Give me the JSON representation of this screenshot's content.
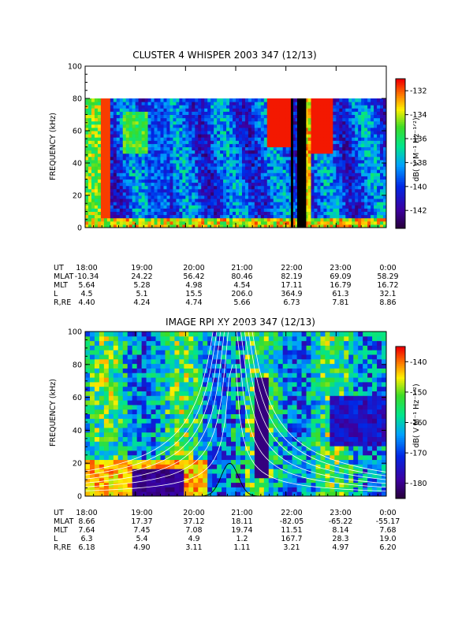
{
  "chart_data": [
    {
      "type": "heatmap",
      "title": "CLUSTER 4 WHISPER 2003 347 (12/13)",
      "ylabel": "FREQUENCY (kHz)",
      "ylim": [
        0,
        100
      ],
      "yticks": [
        "0",
        "20",
        "40",
        "60",
        "80",
        "100"
      ],
      "xticks": [
        "18:00",
        "19:00",
        "20:00",
        "21:00",
        "22:00",
        "23:00",
        "0:00"
      ],
      "data_ymax": 80,
      "colorbar": {
        "label": "dB( V M⁻¹ Hz⁻¹ᐟ²)",
        "range": [
          -143.5,
          -131
        ],
        "ticks": [
          "-132",
          "-134",
          "-136",
          "-138",
          "-140",
          "-142"
        ],
        "tick_values": [
          -132,
          -134,
          -136,
          -138,
          -140,
          -142
        ]
      },
      "ephemeris": [
        {
          "label": "UT",
          "values": [
            "18:00",
            "19:00",
            "20:00",
            "21:00",
            "22:00",
            "23:00",
            "0:00"
          ]
        },
        {
          "label": "MLAT",
          "values": [
            "-10.34",
            "24.22",
            "56.42",
            "80.46",
            "82.19",
            "69.09",
            "58.29"
          ]
        },
        {
          "label": "MLT",
          "values": [
            "5.64",
            "5.28",
            "4.98",
            "4.54",
            "17.11",
            "16.79",
            "16.72"
          ]
        },
        {
          "label": "L",
          "values": [
            "4.5",
            "5.1",
            "15.5",
            "206.0",
            "364.9",
            "61.3",
            "32.1"
          ]
        },
        {
          "label": "R,RE",
          "values": [
            "4.40",
            "4.24",
            "4.74",
            "5.66",
            "6.73",
            "7.81",
            "8.86"
          ]
        }
      ]
    },
    {
      "type": "heatmap",
      "title": "IMAGE RPI XY 2003 347 (12/13)",
      "ylabel": "FREQUENCY (kHz)",
      "ylim": [
        0,
        100
      ],
      "yticks": [
        "0",
        "20",
        "40",
        "60",
        "80",
        "100"
      ],
      "xticks": [
        "18:00",
        "19:00",
        "20:00",
        "21:00",
        "22:00",
        "23:00",
        "0:00"
      ],
      "data_ymax": 100,
      "colorbar": {
        "label": "dB( V M⁻¹ Hz⁻¹ᐟ²)",
        "range": [
          -185,
          -135
        ],
        "ticks": [
          "-140",
          "-150",
          "-160",
          "-170",
          "-180"
        ],
        "tick_values": [
          -140,
          -150,
          -160,
          -170,
          -180
        ]
      },
      "ephemeris": [
        {
          "label": "UT",
          "values": [
            "18:00",
            "19:00",
            "20:00",
            "21:00",
            "22:00",
            "23:00",
            "0:00"
          ]
        },
        {
          "label": "MLAT",
          "values": [
            "8.66",
            "17.37",
            "37.12",
            "18.11",
            "-82.05",
            "-65.22",
            "-55.17"
          ]
        },
        {
          "label": "MLT",
          "values": [
            "7.64",
            "7.45",
            "7.08",
            "19.74",
            "11.51",
            "8.14",
            "7.68"
          ]
        },
        {
          "label": "L",
          "values": [
            "6.3",
            "5.4",
            "4.9",
            "1.2",
            "167.7",
            "28.3",
            "19.0"
          ]
        },
        {
          "label": "R,RE",
          "values": [
            "6.18",
            "4.90",
            "3.11",
            "1.11",
            "3.21",
            "4.97",
            "6.20"
          ]
        }
      ]
    }
  ]
}
